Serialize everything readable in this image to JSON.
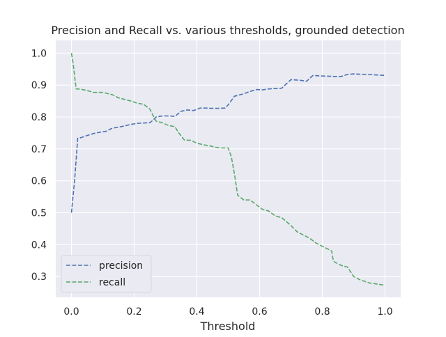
{
  "chart_data": {
    "type": "line",
    "title": "Precision and Recall vs. various thresholds, grounded detection",
    "xlabel": "Threshold",
    "ylabel": "",
    "xlim": [
      -0.05,
      1.05
    ],
    "ylim": [
      0.235,
      1.04
    ],
    "xticks": [
      0.0,
      0.2,
      0.4,
      0.6,
      0.8,
      1.0
    ],
    "xtick_labels": [
      "0.0",
      "0.2",
      "0.4",
      "0.6",
      "0.8",
      "1.0"
    ],
    "yticks": [
      0.3,
      0.4,
      0.5,
      0.6,
      0.7,
      0.8,
      0.9,
      1.0
    ],
    "ytick_labels": [
      "0.3",
      "0.4",
      "0.5",
      "0.6",
      "0.7",
      "0.8",
      "0.9",
      "1.0"
    ],
    "grid": true,
    "legend_position": "lower-left",
    "style": {
      "plot_background": "#eaeaf2",
      "grid_color": "#ffffff",
      "line_style": "dashed"
    },
    "series": [
      {
        "name": "precision",
        "color": "#4c72b0",
        "x": [
          0.0,
          0.01,
          0.02,
          0.03,
          0.05,
          0.07,
          0.09,
          0.11,
          0.13,
          0.15,
          0.17,
          0.19,
          0.21,
          0.23,
          0.25,
          0.26,
          0.27,
          0.29,
          0.31,
          0.33,
          0.35,
          0.37,
          0.39,
          0.41,
          0.43,
          0.45,
          0.47,
          0.49,
          0.5,
          0.52,
          0.55,
          0.57,
          0.59,
          0.61,
          0.63,
          0.65,
          0.67,
          0.7,
          0.73,
          0.75,
          0.77,
          0.79,
          0.81,
          0.84,
          0.86,
          0.88,
          0.9,
          0.92,
          0.95,
          1.0
        ],
        "y": [
          0.5,
          0.6,
          0.733,
          0.735,
          0.742,
          0.748,
          0.752,
          0.755,
          0.765,
          0.768,
          0.772,
          0.777,
          0.78,
          0.781,
          0.782,
          0.79,
          0.8,
          0.803,
          0.803,
          0.802,
          0.818,
          0.822,
          0.82,
          0.828,
          0.828,
          0.827,
          0.827,
          0.828,
          0.838,
          0.865,
          0.873,
          0.88,
          0.886,
          0.885,
          0.888,
          0.889,
          0.89,
          0.917,
          0.915,
          0.912,
          0.93,
          0.929,
          0.928,
          0.927,
          0.927,
          0.933,
          0.935,
          0.934,
          0.933,
          0.93
        ]
      },
      {
        "name": "recall",
        "color": "#55a868",
        "x": [
          0.0,
          0.005,
          0.015,
          0.03,
          0.05,
          0.07,
          0.1,
          0.13,
          0.15,
          0.17,
          0.19,
          0.21,
          0.23,
          0.25,
          0.26,
          0.27,
          0.29,
          0.31,
          0.33,
          0.34,
          0.36,
          0.38,
          0.4,
          0.42,
          0.44,
          0.46,
          0.48,
          0.5,
          0.51,
          0.52,
          0.53,
          0.55,
          0.57,
          0.59,
          0.61,
          0.63,
          0.65,
          0.67,
          0.7,
          0.72,
          0.74,
          0.76,
          0.78,
          0.8,
          0.82,
          0.83,
          0.835,
          0.84,
          0.86,
          0.88,
          0.9,
          0.92,
          0.95,
          1.0
        ],
        "y": [
          1.0,
          0.97,
          0.888,
          0.887,
          0.883,
          0.877,
          0.877,
          0.87,
          0.86,
          0.855,
          0.85,
          0.843,
          0.84,
          0.825,
          0.805,
          0.787,
          0.782,
          0.773,
          0.77,
          0.753,
          0.728,
          0.727,
          0.718,
          0.713,
          0.71,
          0.705,
          0.703,
          0.703,
          0.675,
          0.62,
          0.555,
          0.54,
          0.54,
          0.525,
          0.51,
          0.505,
          0.49,
          0.485,
          0.46,
          0.44,
          0.43,
          0.42,
          0.405,
          0.395,
          0.385,
          0.38,
          0.35,
          0.345,
          0.335,
          0.33,
          0.3,
          0.29,
          0.28,
          0.273
        ]
      }
    ]
  }
}
